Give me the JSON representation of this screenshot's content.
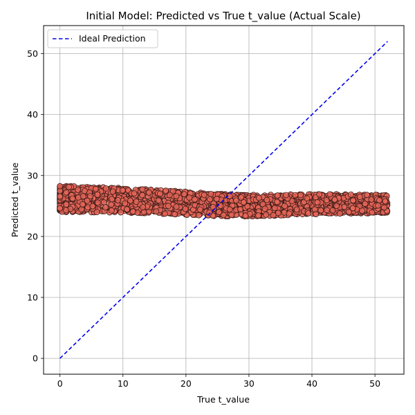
{
  "chart_data": {
    "type": "scatter",
    "title": "Initial Model: Predicted vs True t_value (Actual Scale)",
    "xlabel": "True t_value",
    "ylabel": "Predicted t_value",
    "xlim": [
      -2.6,
      54.6
    ],
    "ylim": [
      -2.6,
      54.6
    ],
    "xticks": [
      0,
      10,
      20,
      30,
      40,
      50
    ],
    "yticks": [
      0,
      10,
      20,
      30,
      40,
      50
    ],
    "grid": true,
    "legend": {
      "placement": "top-left",
      "entries": [
        "Ideal Prediction"
      ]
    },
    "series": [
      {
        "kind": "points",
        "color": "#e8685a",
        "edge_color": "#3a1a16",
        "x_range": [
          0,
          52
        ],
        "y_band_start": [
          24.0,
          28.3
        ],
        "y_band_end": [
          23.8,
          26.8
        ],
        "description": "dense cloud of predictions spanning true 0–52 with predicted 23–28"
      },
      {
        "name": "Ideal Prediction",
        "kind": "line",
        "style": "dashed",
        "color": "#0000ee",
        "x": [
          0,
          52
        ],
        "y": [
          0,
          52
        ]
      }
    ]
  }
}
